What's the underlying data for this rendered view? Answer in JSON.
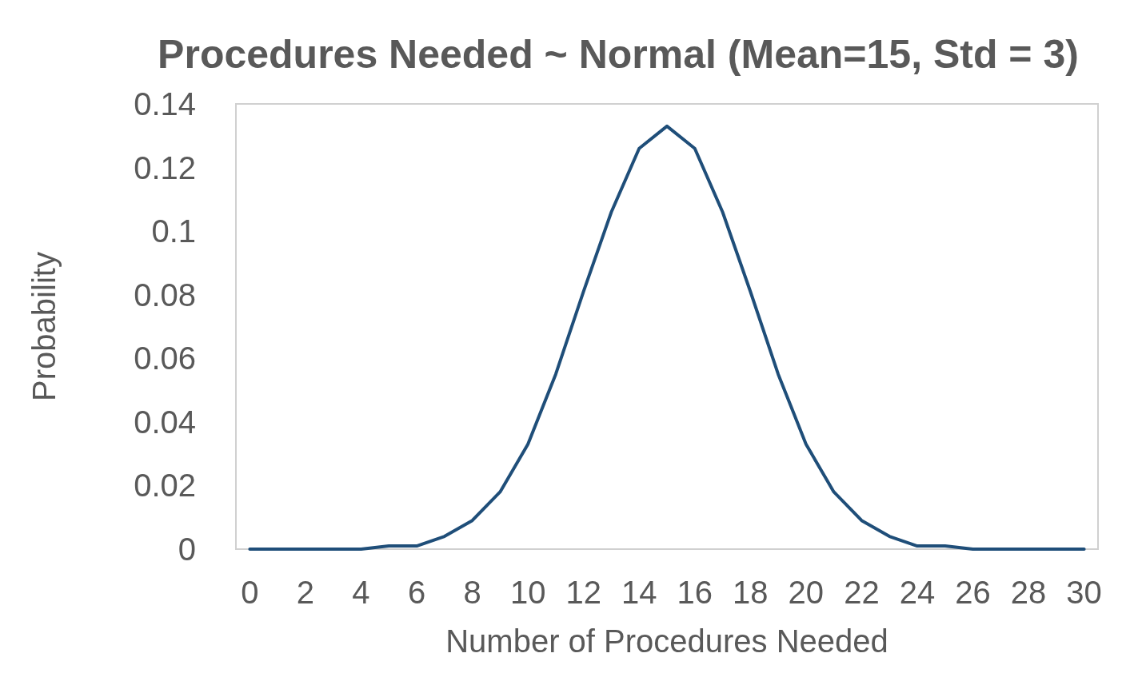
{
  "chart_data": {
    "type": "line",
    "title": "Procedures Needed ~ Normal (Mean=15, Std = 3)",
    "xlabel": "Number of Procedures Needed",
    "ylabel": "Probability",
    "x": [
      0,
      1,
      2,
      3,
      4,
      5,
      6,
      7,
      8,
      9,
      10,
      11,
      12,
      13,
      14,
      15,
      16,
      17,
      18,
      19,
      20,
      21,
      22,
      23,
      24,
      25,
      26,
      27,
      28,
      29,
      30
    ],
    "series": [
      {
        "color": "#1f4e79",
        "values": [
          0,
          0,
          0,
          0,
          0,
          0.001,
          0.001,
          0.004,
          0.009,
          0.018,
          0.033,
          0.055,
          0.081,
          0.106,
          0.126,
          0.133,
          0.126,
          0.106,
          0.081,
          0.055,
          0.033,
          0.018,
          0.009,
          0.004,
          0.001,
          0.001,
          0,
          0,
          0,
          0,
          0
        ]
      }
    ],
    "xlim": [
      -0.5,
      30.5
    ],
    "xticks": [
      0,
      2,
      4,
      6,
      8,
      10,
      12,
      14,
      16,
      18,
      20,
      22,
      24,
      26,
      28,
      30
    ],
    "ylim": [
      0,
      0.14
    ],
    "yticks": [
      0,
      0.02,
      0.04,
      0.06,
      0.08,
      0.1,
      0.12,
      0.14
    ],
    "marker": "none",
    "line_style": "solid"
  }
}
